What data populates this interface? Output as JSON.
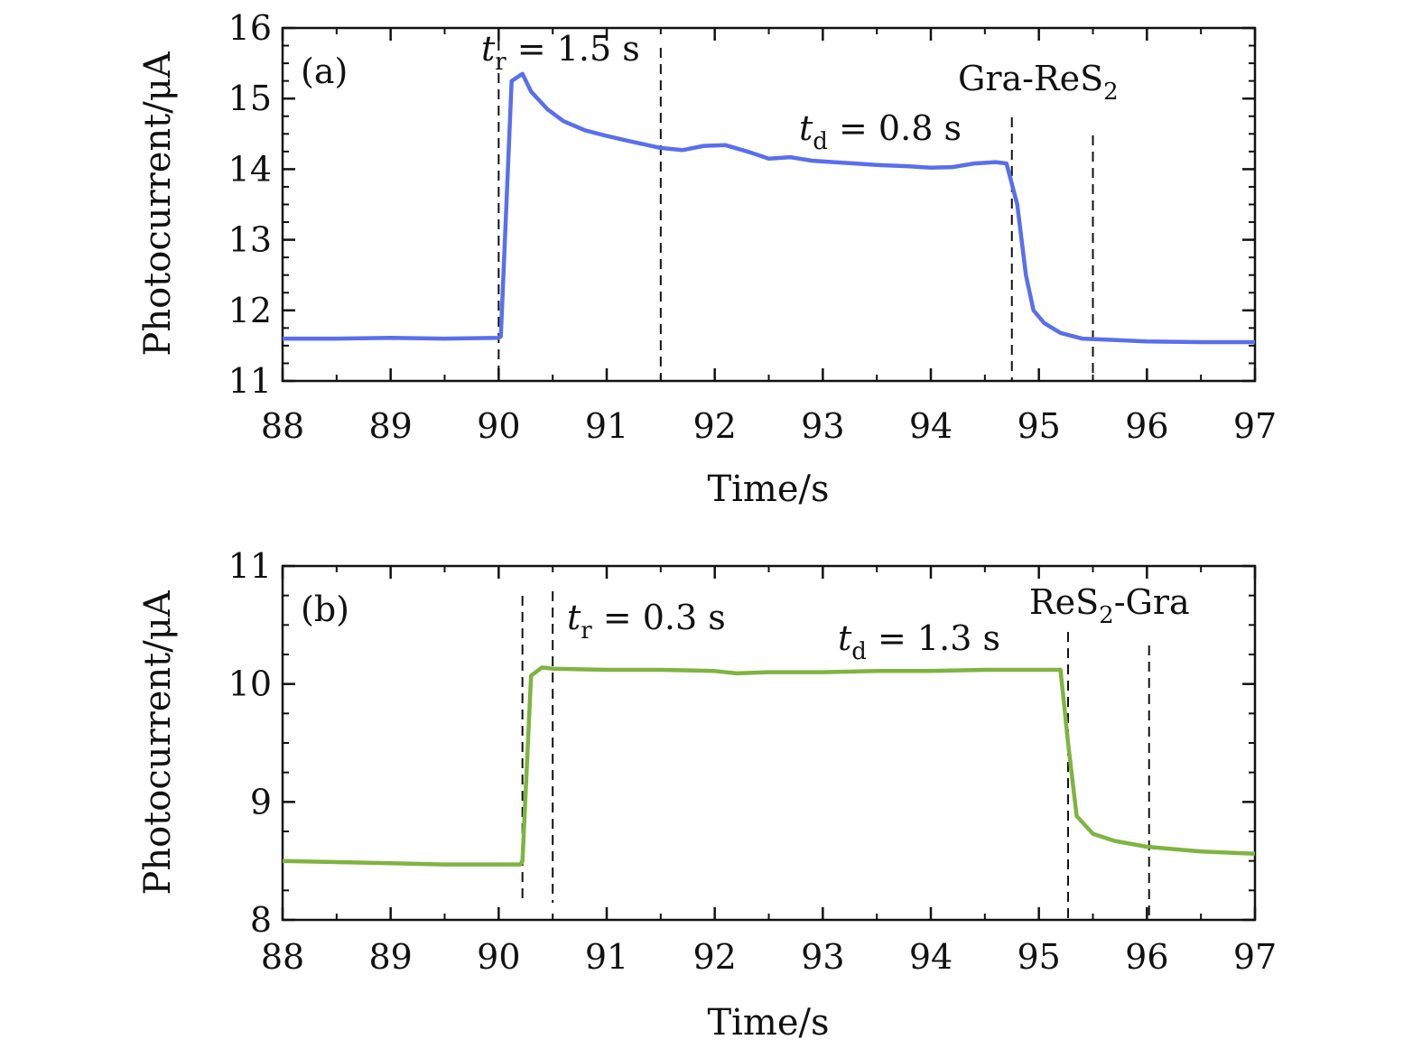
{
  "chart_data": [
    {
      "type": "line",
      "panel_label": "(a)",
      "xlabel": "Time/s",
      "ylabel": "Photocurrent/μA",
      "xlim": [
        88,
        97
      ],
      "ylim": [
        11,
        16
      ],
      "xticks": [
        88,
        89,
        90,
        91,
        92,
        93,
        94,
        95,
        96,
        97
      ],
      "yticks": [
        11,
        12,
        13,
        14,
        15,
        16
      ],
      "grid": false,
      "color": "#5a6fec",
      "series": [
        {
          "name": "Gra-ReS2",
          "x": [
            88.0,
            88.5,
            89.0,
            89.5,
            90.0,
            90.02,
            90.12,
            90.22,
            90.3,
            90.45,
            90.6,
            90.8,
            91.0,
            91.2,
            91.5,
            91.7,
            91.9,
            92.1,
            92.3,
            92.5,
            92.7,
            92.9,
            93.1,
            93.3,
            93.5,
            93.8,
            94.0,
            94.2,
            94.4,
            94.6,
            94.7,
            94.8,
            94.88,
            94.95,
            95.05,
            95.2,
            95.4,
            95.7,
            96.0,
            96.5,
            97.0
          ],
          "y": [
            11.6,
            11.6,
            11.61,
            11.6,
            11.61,
            11.63,
            15.25,
            15.35,
            15.1,
            14.85,
            14.68,
            14.55,
            14.47,
            14.4,
            14.3,
            14.27,
            14.33,
            14.34,
            14.25,
            14.15,
            14.17,
            14.12,
            14.1,
            14.08,
            14.06,
            14.04,
            14.02,
            14.03,
            14.08,
            14.1,
            14.08,
            13.5,
            12.5,
            12.0,
            11.82,
            11.68,
            11.6,
            11.58,
            11.56,
            11.55,
            11.55
          ]
        }
      ],
      "dashed_markers_x": [
        90.0,
        91.5,
        94.75,
        95.5
      ],
      "annotations": [
        {
          "symbol": "t",
          "subscript": "r",
          "text": " = 1.5 s"
        },
        {
          "symbol": "t",
          "subscript": "d",
          "text": " = 0.8 s"
        },
        {
          "main": "Gra-ReS",
          "subscript": "2",
          "rest": ""
        }
      ]
    },
    {
      "type": "line",
      "panel_label": "(b)",
      "xlabel": "Time/s",
      "ylabel": "Photocurrent/μA",
      "xlim": [
        88,
        97
      ],
      "ylim": [
        8,
        11
      ],
      "xticks": [
        88,
        89,
        90,
        91,
        92,
        93,
        94,
        95,
        96,
        97
      ],
      "yticks": [
        8,
        9,
        10,
        11
      ],
      "grid": false,
      "color": "#7fb440",
      "series": [
        {
          "name": "ReS2-Gra",
          "x": [
            88.0,
            88.5,
            89.0,
            89.5,
            90.0,
            90.2,
            90.22,
            90.3,
            90.4,
            90.5,
            91.0,
            91.5,
            92.0,
            92.2,
            92.5,
            93.0,
            93.5,
            94.0,
            94.5,
            95.0,
            95.2,
            95.27,
            95.35,
            95.5,
            95.7,
            96.0,
            96.5,
            97.0
          ],
          "y": [
            8.5,
            8.49,
            8.48,
            8.47,
            8.47,
            8.47,
            8.5,
            10.07,
            10.14,
            10.13,
            10.12,
            10.12,
            10.11,
            10.09,
            10.1,
            10.1,
            10.11,
            10.11,
            10.12,
            10.12,
            10.12,
            9.5,
            8.88,
            8.73,
            8.67,
            8.62,
            8.58,
            8.56
          ]
        }
      ],
      "dashed_markers_x": [
        90.22,
        90.5,
        95.27,
        96.02
      ],
      "annotations": [
        {
          "symbol": "t",
          "subscript": "r",
          "text": " = 0.3 s"
        },
        {
          "symbol": "t",
          "subscript": "d",
          "text": " = 1.3 s"
        },
        {
          "main": "ReS",
          "subscript": "2",
          "rest": "-Gra"
        }
      ]
    }
  ]
}
